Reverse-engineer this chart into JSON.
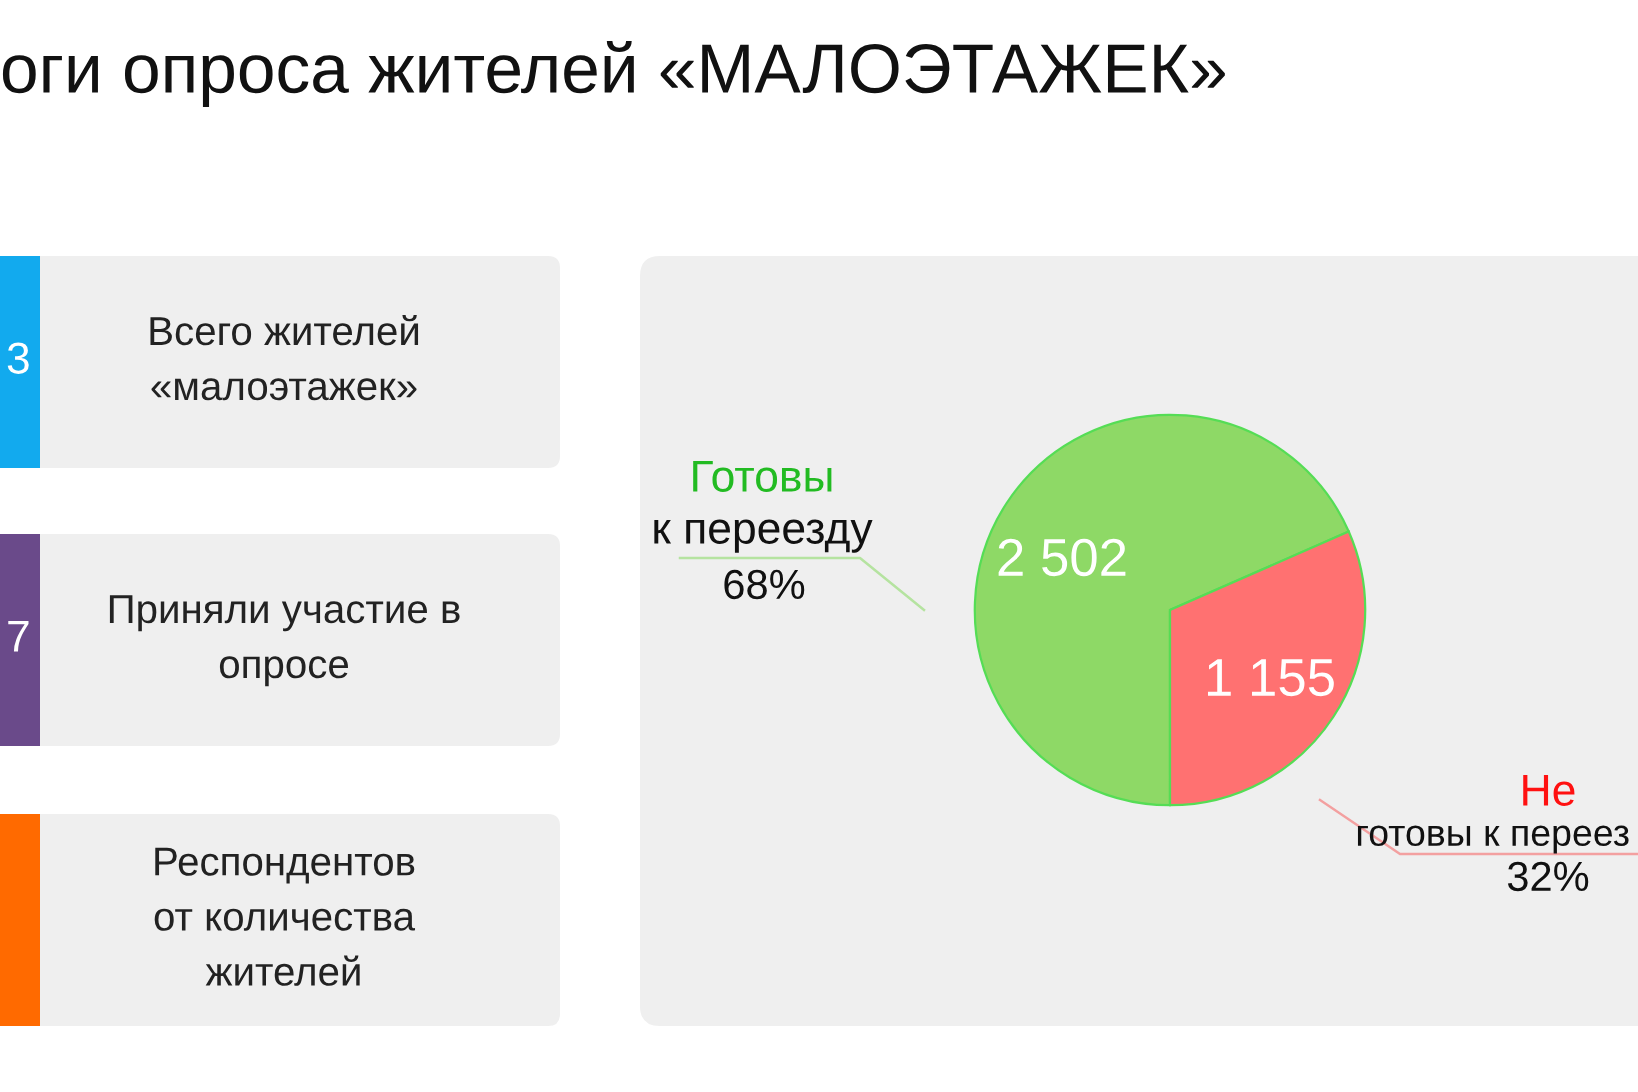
{
  "chart_data": [
    {
      "type": "other",
      "title": "оги опроса жителей «МАЛОЭТАЖЕК»",
      "categories": [
        "Всего жителей\n«малоэтажек»",
        "Приняли участие в\nопросе",
        "Респондентов\nот количества\nжителей"
      ],
      "value_labels": [
        "3",
        "7",
        null
      ]
    },
    {
      "type": "pie",
      "categories": [
        "Готовы\nк переезду",
        "Не\nготовы к переез"
      ],
      "values": [
        2502,
        1155
      ],
      "colors": [
        "#8ed966",
        "#ff7171"
      ],
      "value_labels": [
        "2 502",
        "1 155"
      ],
      "annotations": [
        "68%",
        "32%"
      ]
    }
  ]
}
